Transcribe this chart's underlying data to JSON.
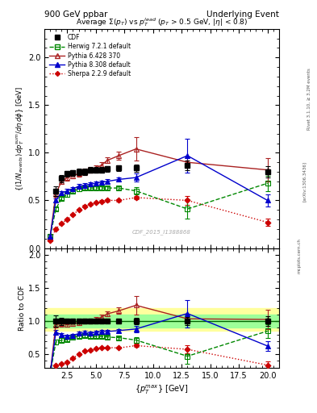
{
  "title_top": "900 GeV ppbar",
  "title_top_right": "Underlying Event",
  "watermark": "CDF_2015_I1388868",
  "rivet_label": "Rivet 3.1.10, ≥ 3.2M events",
  "arxiv_label": "[arXiv:1306.3436]",
  "mcplots_label": "mcplots.cern.ch",
  "cdf_x": [
    1.5,
    2.0,
    2.5,
    3.0,
    3.5,
    4.0,
    4.5,
    5.0,
    5.5,
    6.0,
    7.0,
    8.5,
    13.0,
    20.0
  ],
  "cdf_y": [
    0.6,
    0.73,
    0.78,
    0.79,
    0.8,
    0.8,
    0.82,
    0.82,
    0.82,
    0.83,
    0.84,
    0.84,
    0.87,
    0.8
  ],
  "cdf_yerr": [
    0.05,
    0.04,
    0.03,
    0.03,
    0.03,
    0.03,
    0.03,
    0.03,
    0.03,
    0.03,
    0.03,
    0.04,
    0.05,
    0.06
  ],
  "herwig_x": [
    1.0,
    1.5,
    2.0,
    2.5,
    3.0,
    3.5,
    4.0,
    4.5,
    5.0,
    5.5,
    6.0,
    7.0,
    8.5,
    13.0,
    20.0
  ],
  "herwig_y": [
    0.12,
    0.41,
    0.52,
    0.56,
    0.6,
    0.62,
    0.63,
    0.63,
    0.63,
    0.63,
    0.63,
    0.63,
    0.6,
    0.41,
    0.68
  ],
  "herwig_yerr": [
    0.02,
    0.02,
    0.02,
    0.02,
    0.02,
    0.02,
    0.02,
    0.02,
    0.02,
    0.02,
    0.02,
    0.02,
    0.04,
    0.1,
    0.08
  ],
  "pythia6_x": [
    1.0,
    1.5,
    2.0,
    2.5,
    3.0,
    3.5,
    4.0,
    4.5,
    5.0,
    5.5,
    6.0,
    7.0,
    8.5,
    13.0,
    20.0
  ],
  "pythia6_y": [
    0.12,
    0.57,
    0.7,
    0.74,
    0.76,
    0.78,
    0.8,
    0.82,
    0.84,
    0.87,
    0.92,
    0.97,
    1.04,
    0.9,
    0.82
  ],
  "pythia6_yerr": [
    0.02,
    0.03,
    0.03,
    0.03,
    0.03,
    0.03,
    0.03,
    0.03,
    0.03,
    0.03,
    0.03,
    0.04,
    0.12,
    0.06,
    0.12
  ],
  "pythia8_x": [
    1.0,
    1.5,
    2.0,
    2.5,
    3.0,
    3.5,
    4.0,
    4.5,
    5.0,
    5.5,
    6.0,
    7.0,
    8.5,
    13.0,
    20.0
  ],
  "pythia8_y": [
    0.12,
    0.5,
    0.58,
    0.6,
    0.62,
    0.65,
    0.66,
    0.67,
    0.68,
    0.69,
    0.7,
    0.72,
    0.74,
    0.97,
    0.5
  ],
  "pythia8_yerr": [
    0.02,
    0.02,
    0.02,
    0.02,
    0.02,
    0.02,
    0.02,
    0.02,
    0.02,
    0.02,
    0.02,
    0.02,
    0.04,
    0.18,
    0.06
  ],
  "sherpa_x": [
    1.0,
    1.5,
    2.0,
    2.5,
    3.0,
    3.5,
    4.0,
    4.5,
    5.0,
    5.5,
    6.0,
    7.0,
    8.5,
    13.0,
    20.0
  ],
  "sherpa_y": [
    0.08,
    0.2,
    0.26,
    0.3,
    0.35,
    0.4,
    0.44,
    0.46,
    0.48,
    0.49,
    0.5,
    0.5,
    0.53,
    0.5,
    0.27
  ],
  "sherpa_yerr": [
    0.01,
    0.01,
    0.01,
    0.01,
    0.01,
    0.01,
    0.01,
    0.01,
    0.01,
    0.01,
    0.01,
    0.01,
    0.02,
    0.05,
    0.04
  ],
  "color_cdf": "#000000",
  "color_herwig": "#008800",
  "color_pythia6": "#aa2222",
  "color_pythia8": "#0000cc",
  "color_sherpa": "#cc0000",
  "xlim": [
    0.5,
    21
  ],
  "ylim_main": [
    0.0,
    2.3
  ],
  "ylim_ratio": [
    0.3,
    2.1
  ],
  "band_yellow_lo": 0.85,
  "band_yellow_hi": 1.2,
  "band_green_lo": 0.9,
  "band_green_hi": 1.1
}
